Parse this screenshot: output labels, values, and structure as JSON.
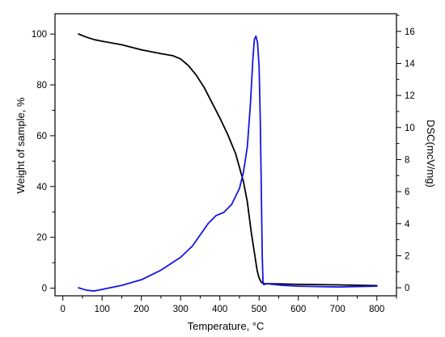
{
  "chart_data": {
    "type": "line",
    "title": "",
    "xlabel": "Temperature, °C",
    "ylabel": "Weight of sample, %",
    "y2label": "DSC(mcV/mg)",
    "xlim": [
      -20,
      850
    ],
    "ylim": [
      -3,
      108
    ],
    "y2lim": [
      -0.5,
      17.1
    ],
    "xticks": [
      0,
      100,
      200,
      300,
      400,
      500,
      600,
      700,
      800
    ],
    "yticks": [
      0,
      20,
      40,
      60,
      80,
      100
    ],
    "y2ticks": [
      0,
      2,
      4,
      6,
      8,
      10,
      12,
      14,
      16
    ],
    "grid": false,
    "legend": false,
    "colors": {
      "weight": "#000000",
      "dsc": "#1515e6",
      "axis": "#000000"
    },
    "series": [
      {
        "axis": "left",
        "x": [
          40,
          60,
          80,
          100,
          150,
          200,
          250,
          280,
          300,
          320,
          340,
          360,
          380,
          400,
          420,
          440,
          460,
          470,
          480,
          490,
          495,
          500,
          505,
          510,
          550,
          600,
          700,
          800
        ],
        "values": [
          100,
          98.8,
          97.8,
          97.2,
          95.8,
          93.8,
          92.3,
          91.5,
          90.2,
          87.6,
          83.8,
          79,
          73,
          67,
          60.5,
          53,
          42,
          34,
          22,
          12,
          7,
          4,
          2.5,
          1.8,
          1.7,
          1.5,
          1.3,
          1
        ]
      },
      {
        "axis": "right",
        "x": [
          40,
          60,
          80,
          100,
          150,
          200,
          250,
          300,
          330,
          350,
          370,
          390,
          410,
          430,
          450,
          460,
          470,
          478,
          484,
          488,
          492,
          496,
          500,
          503,
          506,
          508,
          510,
          512,
          520,
          560,
          600,
          700,
          800
        ],
        "values": [
          0,
          -0.15,
          -0.2,
          -0.1,
          0.15,
          0.5,
          1.1,
          1.9,
          2.6,
          3.3,
          4.0,
          4.5,
          4.7,
          5.2,
          6.2,
          7.2,
          8.8,
          11.5,
          14.2,
          15.5,
          15.7,
          15.3,
          13.8,
          10.5,
          5.5,
          2,
          0.35,
          0.2,
          0.25,
          0.15,
          0.1,
          0.05,
          0.1
        ]
      }
    ]
  }
}
